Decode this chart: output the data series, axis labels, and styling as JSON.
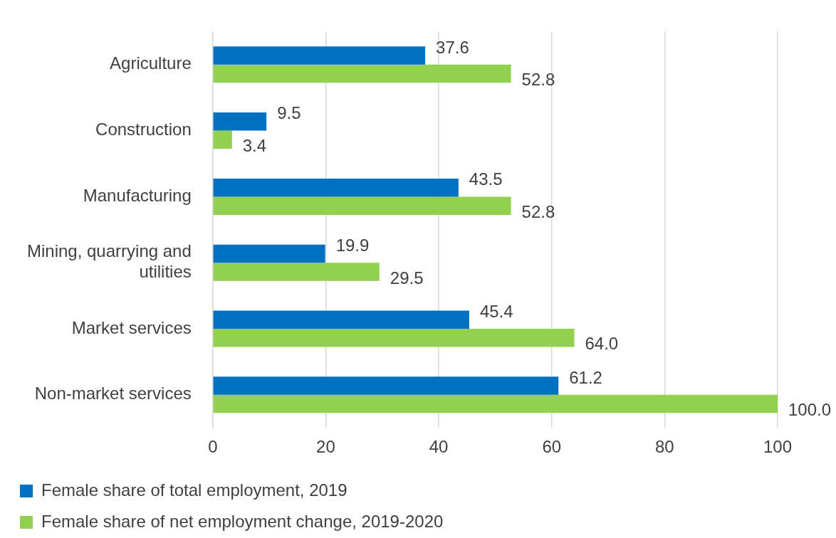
{
  "chart_data": {
    "type": "bar",
    "orientation": "horizontal",
    "categories": [
      "Agriculture",
      "Construction",
      "Manufacturing",
      "Mining, quarrying and utilities",
      "Market services",
      "Non-market services"
    ],
    "series": [
      {
        "name": "Female share of total employment, 2019",
        "color": "#0070c0",
        "values": [
          37.6,
          9.5,
          43.5,
          19.9,
          45.4,
          61.2
        ],
        "value_labels": [
          "37.6",
          "9.5",
          "43.5",
          "19.9",
          "45.4",
          "61.2"
        ]
      },
      {
        "name": "Female share of net employment change, 2019-2020",
        "color": "#92d050",
        "values": [
          52.8,
          3.4,
          52.8,
          29.5,
          64.0,
          100.0
        ],
        "value_labels": [
          "52.8",
          "3.4",
          "52.8",
          "29.5",
          "64.0",
          "100.0"
        ]
      }
    ],
    "xlim": [
      0,
      100
    ],
    "xticks": [
      0,
      20,
      40,
      60,
      80,
      100
    ],
    "grid": "x",
    "legend": "bottom"
  }
}
